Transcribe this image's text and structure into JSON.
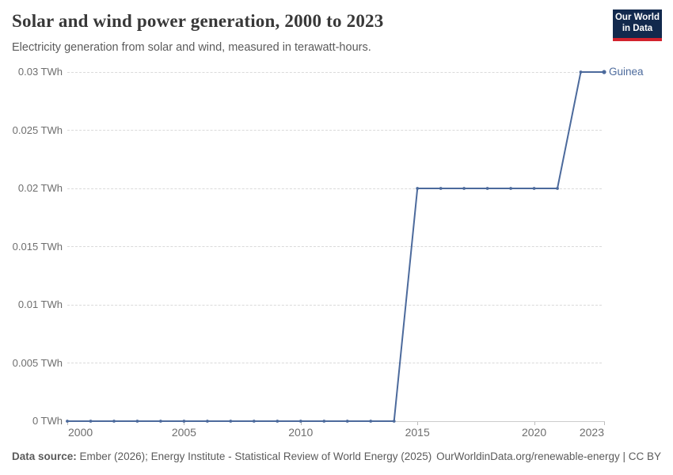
{
  "header": {
    "title": "Solar and wind power generation, 2000 to 2023",
    "subtitle": "Electricity generation from solar and wind, measured in terawatt-hours.",
    "logo": {
      "line1": "Our World",
      "line2": "in Data"
    }
  },
  "chart_data": {
    "type": "line",
    "title": "Solar and wind power generation, 2000 to 2023",
    "unit": "TWh",
    "xlim": [
      2000,
      2023
    ],
    "ylim": [
      0,
      0.03
    ],
    "x_ticks": [
      2000,
      2005,
      2010,
      2015,
      2020,
      2023
    ],
    "y_ticks": [
      {
        "value": 0,
        "label": "0 TWh"
      },
      {
        "value": 0.005,
        "label": "0.005 TWh"
      },
      {
        "value": 0.01,
        "label": "0.01 TWh"
      },
      {
        "value": 0.015,
        "label": "0.015 TWh"
      },
      {
        "value": 0.02,
        "label": "0.02 TWh"
      },
      {
        "value": 0.025,
        "label": "0.025 TWh"
      },
      {
        "value": 0.03,
        "label": "0.03 TWh"
      }
    ],
    "grid": "horizontal-dashed",
    "legend_position": "end-of-line",
    "series": [
      {
        "name": "Guinea",
        "color": "#4c6a9c",
        "x": [
          2000,
          2001,
          2002,
          2003,
          2004,
          2005,
          2006,
          2007,
          2008,
          2009,
          2010,
          2011,
          2012,
          2013,
          2014,
          2015,
          2016,
          2017,
          2018,
          2019,
          2020,
          2021,
          2022,
          2023
        ],
        "values": [
          0,
          0,
          0,
          0,
          0,
          0,
          0,
          0,
          0,
          0,
          0,
          0,
          0,
          0,
          0,
          0.02,
          0.02,
          0.02,
          0.02,
          0.02,
          0.02,
          0.02,
          0.03,
          0.03
        ]
      }
    ]
  },
  "footer": {
    "source_bold": "Data source:",
    "source_rest": "Ember (2026); Energy Institute - Statistical Review of World Energy (2025)",
    "credit": "OurWorldinData.org/renewable-energy | CC BY"
  },
  "colors": {
    "line": "#4c6a9c",
    "grid": "#dadada",
    "axis": "#cccccc",
    "tick": "#bbbbbb",
    "tick_text": "#6e6e6e",
    "logo_bg": "#12294d",
    "logo_accent": "#d2222d"
  }
}
